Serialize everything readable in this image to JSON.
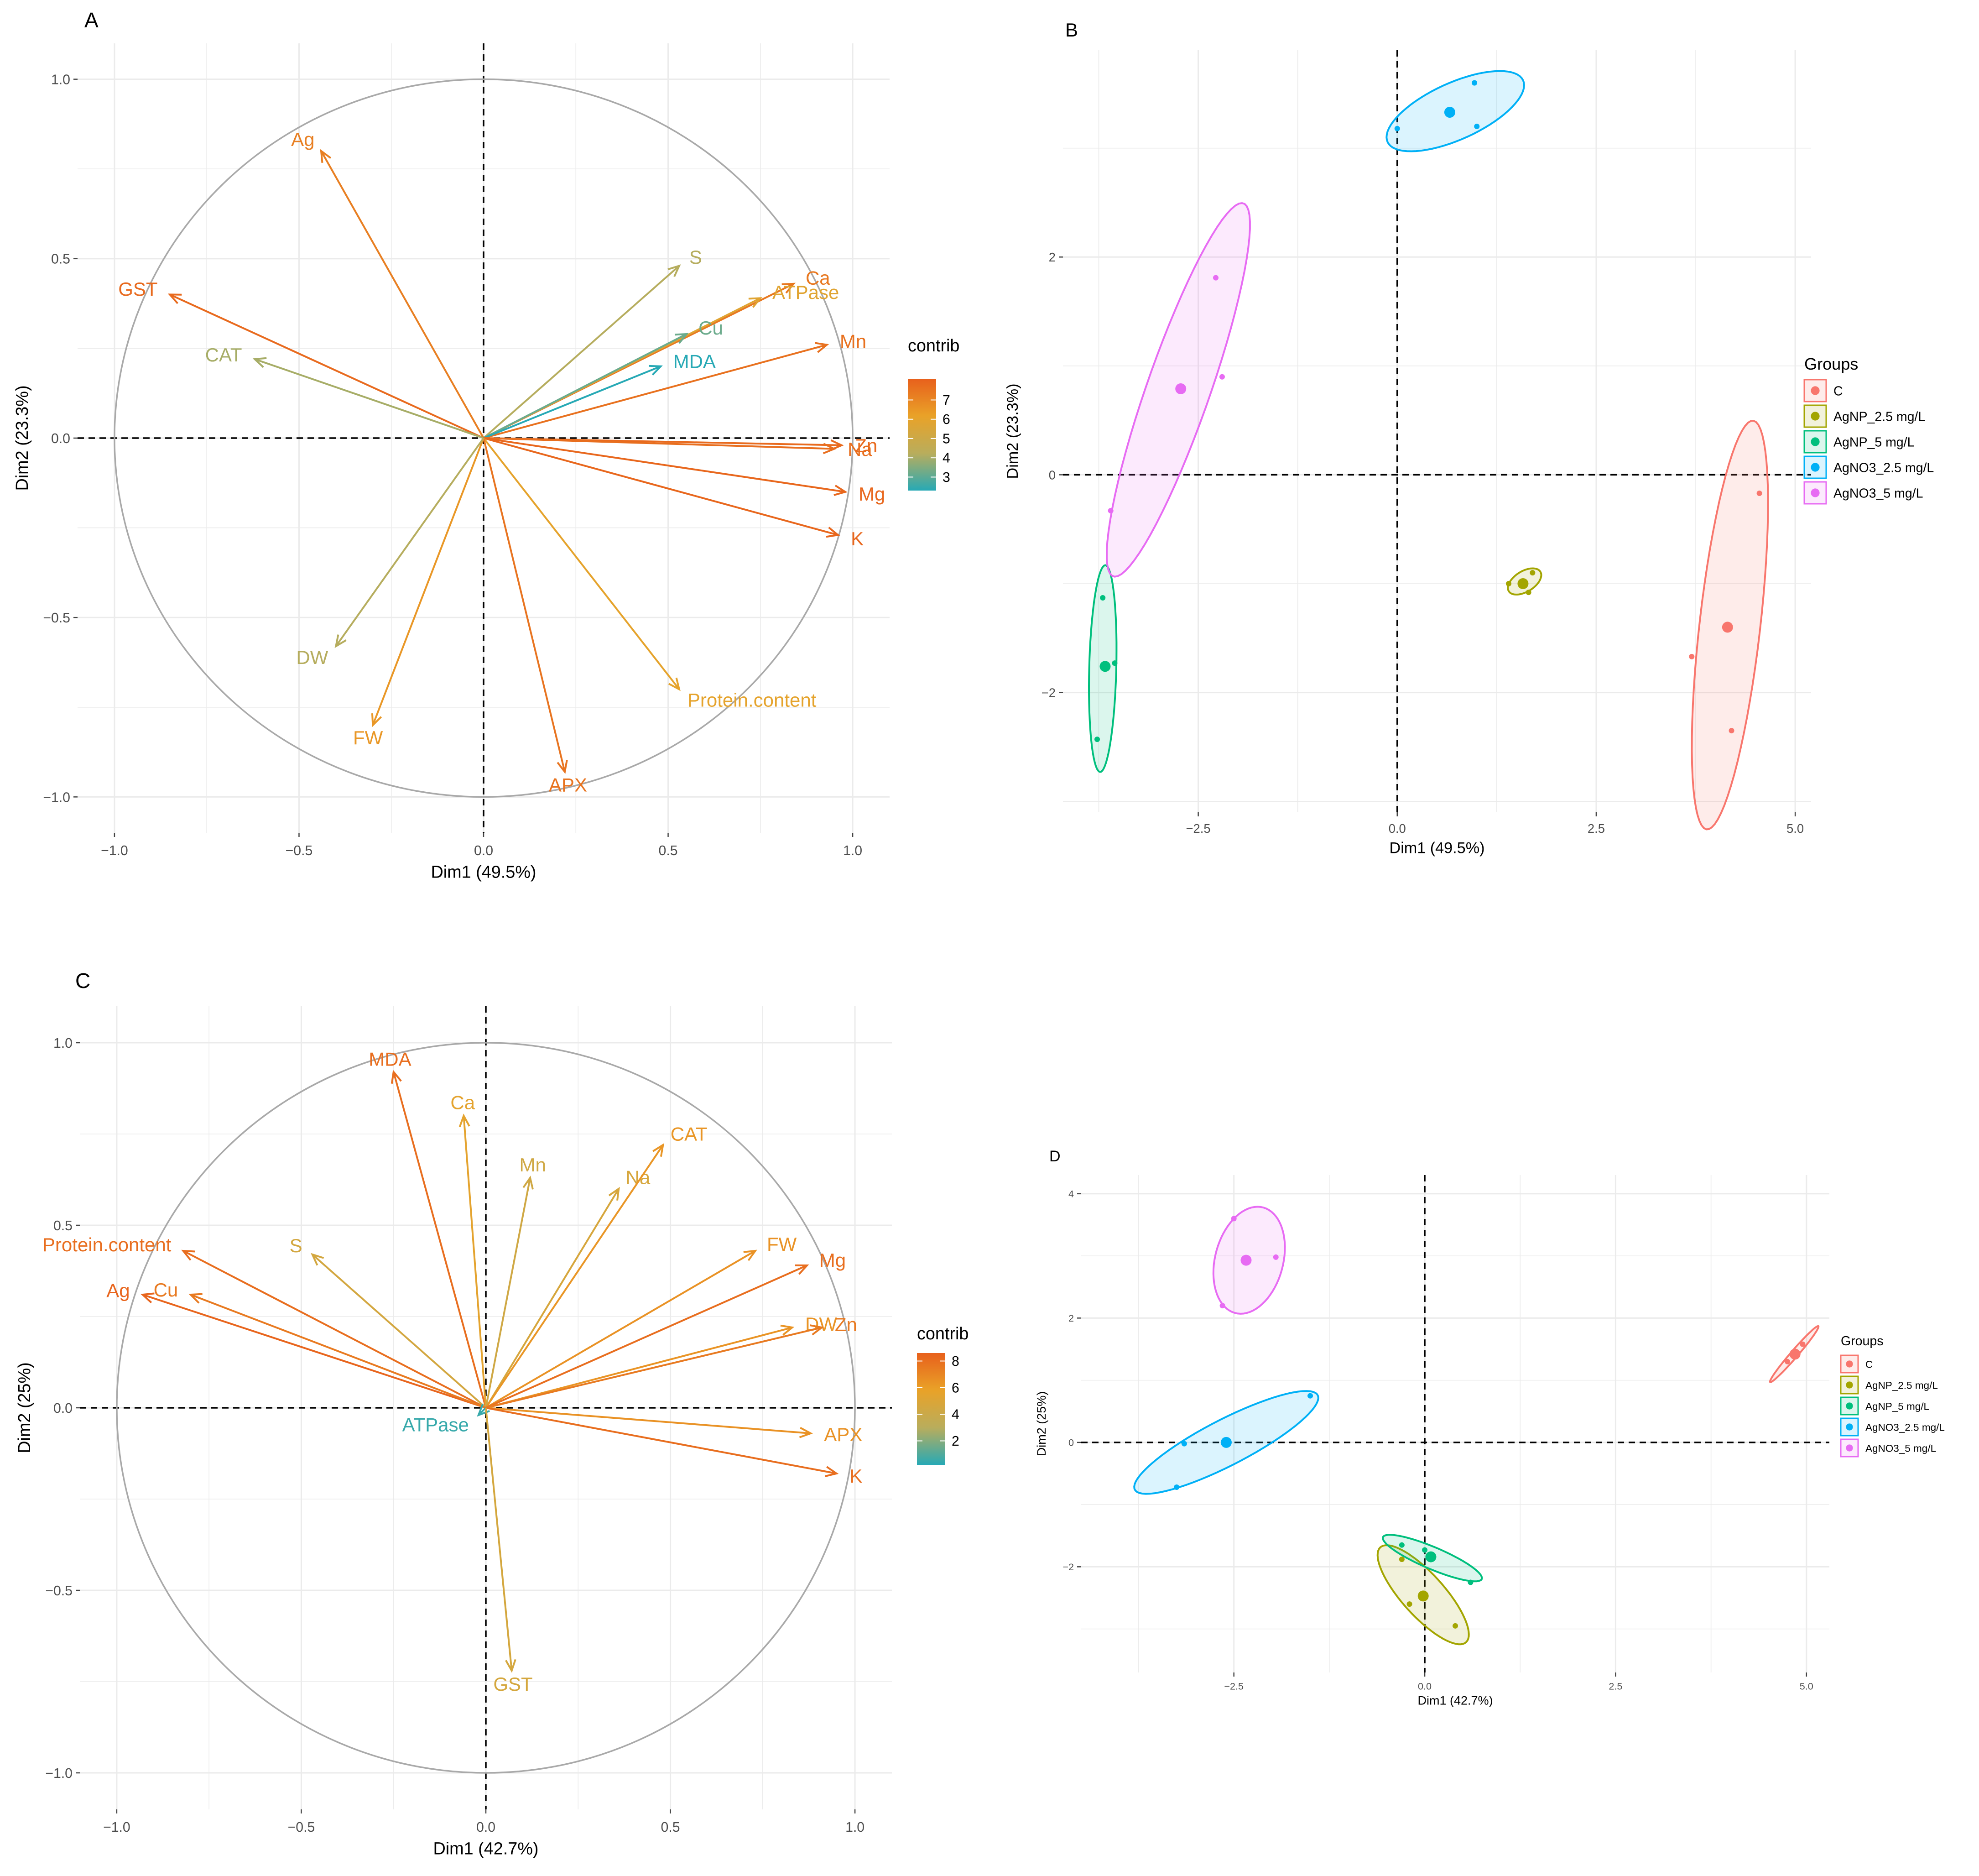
{
  "panels": [
    {
      "panel_label": "A",
      "chart_data": {
        "type": "biplot-variables",
        "xlabel": "Dim1 (49.5%)",
        "ylabel": "Dim2 (23.3%)",
        "xlim": [
          -1.1,
          1.1
        ],
        "ylim": [
          -1.1,
          1.1
        ],
        "x_ticks": [
          -1.0,
          -0.5,
          0.0,
          0.5,
          1.0
        ],
        "x_tick_labels": [
          "−1.0",
          "−0.5",
          "0.0",
          "0.5",
          "1.0"
        ],
        "y_ticks": [
          -1.0,
          -0.5,
          0.0,
          0.5,
          1.0
        ],
        "y_tick_labels": [
          "−1.0",
          "−0.5",
          "0.0",
          "0.5",
          "1.0"
        ],
        "grid": true,
        "unit_circle": true,
        "legend": {
          "title": "contrib",
          "type": "gradient",
          "range": [
            2.3,
            8.1
          ],
          "ticks": [
            3,
            4,
            5,
            6,
            7
          ],
          "colors": [
            "#27a9b5",
            "#b9ad5c",
            "#e9a228",
            "#e8601c"
          ]
        },
        "variables": [
          {
            "name": "Ag",
            "x": -0.44,
            "y": 0.8,
            "contrib": 7.2
          },
          {
            "name": "GST",
            "x": -0.85,
            "y": 0.4,
            "contrib": 7.8
          },
          {
            "name": "CAT",
            "x": -0.62,
            "y": 0.22,
            "contrib": 4.0
          },
          {
            "name": "S",
            "x": 0.53,
            "y": 0.48,
            "contrib": 4.2
          },
          {
            "name": "Ca",
            "x": 0.84,
            "y": 0.43,
            "contrib": 7.4
          },
          {
            "name": "ATPase",
            "x": 0.75,
            "y": 0.39,
            "contrib": 5.8
          },
          {
            "name": "Mn",
            "x": 0.93,
            "y": 0.26,
            "contrib": 7.6
          },
          {
            "name": "Cu",
            "x": 0.55,
            "y": 0.29,
            "contrib": 3.2
          },
          {
            "name": "MDA",
            "x": 0.48,
            "y": 0.2,
            "contrib": 2.3
          },
          {
            "name": "Zn",
            "x": 0.97,
            "y": -0.02,
            "contrib": 7.8
          },
          {
            "name": "Na",
            "x": 0.95,
            "y": -0.03,
            "contrib": 7.7
          },
          {
            "name": "Mg",
            "x": 0.98,
            "y": -0.15,
            "contrib": 7.9
          },
          {
            "name": "K",
            "x": 0.96,
            "y": -0.27,
            "contrib": 7.9
          },
          {
            "name": "Protein.content",
            "x": 0.53,
            "y": -0.7,
            "contrib": 6.0
          },
          {
            "name": "APX",
            "x": 0.22,
            "y": -0.93,
            "contrib": 7.5
          },
          {
            "name": "FW",
            "x": -0.3,
            "y": -0.8,
            "contrib": 6.5
          },
          {
            "name": "DW",
            "x": -0.4,
            "y": -0.58,
            "contrib": 4.2
          }
        ]
      }
    },
    {
      "panel_label": "B",
      "chart_data": {
        "type": "scatter",
        "xlabel": "Dim1 (49.5%)",
        "ylabel": "Dim2 (23.3%)",
        "xlim": [
          -4.2,
          5.2
        ],
        "ylim": [
          -3.1,
          3.9
        ],
        "x_ticks": [
          -2.5,
          0.0,
          2.5,
          5.0
        ],
        "x_tick_labels": [
          "−2.5",
          "0.0",
          "2.5",
          "5.0"
        ],
        "y_ticks": [
          -2,
          0,
          2
        ],
        "y_tick_labels": [
          "−2",
          "0",
          "2"
        ],
        "grid": true,
        "legend": {
          "title": "Groups",
          "placement": "right"
        },
        "series": [
          {
            "name": "C",
            "color": "#f8766d",
            "points": [
              [
                4.55,
                -0.17
              ],
              [
                3.7,
                -1.67
              ],
              [
                4.2,
                -2.35
              ]
            ],
            "centroid": [
              4.15,
              -1.4
            ],
            "ellipse": {
              "center": [
                4.18,
                -1.38
              ],
              "semi_major": 1.9,
              "semi_minor": 0.38,
              "angle_deg": 81
            }
          },
          {
            "name": "AgNP_2.5 mg/L",
            "color": "#a3a500",
            "points": [
              [
                1.4,
                -1.0
              ],
              [
                1.7,
                -0.9
              ],
              [
                1.65,
                -1.08
              ]
            ],
            "centroid": [
              1.58,
              -1.0
            ],
            "ellipse": {
              "center": [
                1.6,
                -0.98
              ],
              "semi_major": 0.22,
              "semi_minor": 0.1,
              "angle_deg": 20
            }
          },
          {
            "name": "AgNP_5 mg/L",
            "color": "#00bf7d",
            "points": [
              [
                -3.7,
                -1.13
              ],
              [
                -3.55,
                -1.73
              ],
              [
                -3.77,
                -2.43
              ]
            ],
            "centroid": [
              -3.67,
              -1.76
            ],
            "ellipse": {
              "center": [
                -3.7,
                -1.78
              ],
              "semi_major": 0.95,
              "semi_minor": 0.17,
              "angle_deg": 88
            }
          },
          {
            "name": "AgNO3_2.5 mg/L",
            "color": "#00b0f6",
            "points": [
              [
                0.0,
                3.18
              ],
              [
                0.97,
                3.6
              ],
              [
                1.0,
                3.2
              ]
            ],
            "centroid": [
              0.66,
              3.33
            ],
            "ellipse": {
              "center": [
                0.73,
                3.34
              ],
              "semi_major": 0.9,
              "semi_minor": 0.27,
              "angle_deg": 17
            }
          },
          {
            "name": "AgNO3_5 mg/L",
            "color": "#e76bf3",
            "points": [
              [
                -2.28,
                1.81
              ],
              [
                -2.2,
                0.9
              ],
              [
                -3.6,
                -0.33
              ]
            ],
            "centroid": [
              -2.72,
              0.79
            ],
            "ellipse": {
              "center": [
                -2.75,
                0.78
              ],
              "semi_major": 1.9,
              "semi_minor": 0.38,
              "angle_deg": 64
            }
          }
        ]
      }
    },
    {
      "panel_label": "C",
      "chart_data": {
        "type": "biplot-variables",
        "xlabel": "Dim1 (42.7%)",
        "ylabel": "Dim2 (25%)",
        "xlim": [
          -1.1,
          1.1
        ],
        "ylim": [
          -1.1,
          1.1
        ],
        "x_ticks": [
          -1.0,
          -0.5,
          0.0,
          0.5,
          1.0
        ],
        "x_tick_labels": [
          "−1.0",
          "−0.5",
          "0.0",
          "0.5",
          "1.0"
        ],
        "y_ticks": [
          -1.0,
          -0.5,
          0.0,
          0.5,
          1.0
        ],
        "y_tick_labels": [
          "−1.0",
          "−0.5",
          "0.0",
          "0.5",
          "1.0"
        ],
        "grid": true,
        "unit_circle": true,
        "legend": {
          "title": "contrib",
          "type": "gradient",
          "range": [
            0.2,
            8.6
          ],
          "ticks": [
            2,
            4,
            6,
            8
          ],
          "colors": [
            "#27a9b5",
            "#b9ad5c",
            "#e9a228",
            "#e8601c"
          ]
        },
        "variables": [
          {
            "name": "MDA",
            "x": -0.25,
            "y": 0.92,
            "contrib": 8.0
          },
          {
            "name": "Ca",
            "x": -0.06,
            "y": 0.8,
            "contrib": 5.5
          },
          {
            "name": "Mn",
            "x": 0.12,
            "y": 0.63,
            "contrib": 4.3
          },
          {
            "name": "Na",
            "x": 0.36,
            "y": 0.6,
            "contrib": 4.7
          },
          {
            "name": "CAT",
            "x": 0.48,
            "y": 0.72,
            "contrib": 6.3
          },
          {
            "name": "Protein.content",
            "x": -0.82,
            "y": 0.43,
            "contrib": 8.0
          },
          {
            "name": "S",
            "x": -0.47,
            "y": 0.42,
            "contrib": 4.5
          },
          {
            "name": "Ag",
            "x": -0.93,
            "y": 0.31,
            "contrib": 8.4
          },
          {
            "name": "Cu",
            "x": -0.8,
            "y": 0.31,
            "contrib": 7.5
          },
          {
            "name": "FW",
            "x": 0.73,
            "y": 0.43,
            "contrib": 6.5
          },
          {
            "name": "Mg",
            "x": 0.87,
            "y": 0.39,
            "contrib": 8.0
          },
          {
            "name": "DW",
            "x": 0.83,
            "y": 0.22,
            "contrib": 6.4
          },
          {
            "name": "Zn",
            "x": 0.91,
            "y": 0.22,
            "contrib": 7.5
          },
          {
            "name": "APX",
            "x": 0.88,
            "y": -0.07,
            "contrib": 6.5
          },
          {
            "name": "K",
            "x": 0.95,
            "y": -0.18,
            "contrib": 8.0
          },
          {
            "name": "ATPase",
            "x": -0.02,
            "y": -0.02,
            "contrib": 0.5
          },
          {
            "name": "GST",
            "x": 0.07,
            "y": -0.72,
            "contrib": 4.6
          }
        ]
      }
    },
    {
      "panel_label": "D",
      "chart_data": {
        "type": "scatter",
        "xlabel": "Dim1 (42.7%)",
        "ylabel": "Dim2 (25%)",
        "xlim": [
          -4.5,
          5.3
        ],
        "ylim": [
          -3.7,
          4.3
        ],
        "x_ticks": [
          -2.5,
          0.0,
          2.5,
          5.0
        ],
        "x_tick_labels": [
          "−2.5",
          "0.0",
          "2.5",
          "5.0"
        ],
        "y_ticks": [
          -2,
          0,
          2,
          4
        ],
        "y_tick_labels": [
          "−2",
          "0",
          "2",
          "4"
        ],
        "grid": true,
        "legend": {
          "title": "Groups",
          "placement": "right"
        },
        "series": [
          {
            "name": "C",
            "color": "#f8766d",
            "points": [
              [
                4.75,
                1.3
              ],
              [
                4.95,
                1.58
              ],
              [
                4.85,
                1.45
              ]
            ],
            "centroid": [
              4.85,
              1.42
            ],
            "ellipse": {
              "center": [
                4.84,
                1.42
              ],
              "semi_major": 0.55,
              "semi_minor": 0.05,
              "angle_deg": 55
            }
          },
          {
            "name": "AgNP_2.5 mg/L",
            "color": "#a3a500",
            "points": [
              [
                -0.3,
                -1.88
              ],
              [
                -0.2,
                -2.6
              ],
              [
                0.4,
                -2.95
              ]
            ],
            "centroid": [
              -0.02,
              -2.47
            ],
            "ellipse": {
              "center": [
                -0.02,
                -2.45
              ],
              "semi_major": 0.95,
              "semi_minor": 0.3,
              "angle_deg": -55
            }
          },
          {
            "name": "AgNP_5 mg/L",
            "color": "#00bf7d",
            "points": [
              [
                -0.3,
                -1.65
              ],
              [
                0.0,
                -1.73
              ],
              [
                0.6,
                -2.25
              ]
            ],
            "centroid": [
              0.08,
              -1.84
            ],
            "ellipse": {
              "center": [
                0.1,
                -1.86
              ],
              "semi_major": 0.73,
              "semi_minor": 0.17,
              "angle_deg": -28
            }
          },
          {
            "name": "AgNO3_2.5 mg/L",
            "color": "#00b0f6",
            "points": [
              [
                -3.15,
                -0.02
              ],
              [
                -1.5,
                0.75
              ],
              [
                -3.25,
                -0.72
              ]
            ],
            "centroid": [
              -2.6,
              0.0
            ],
            "ellipse": {
              "center": [
                -2.6,
                0.0
              ],
              "semi_major": 1.42,
              "semi_minor": 0.35,
              "angle_deg": 33
            }
          },
          {
            "name": "AgNO3_5 mg/L",
            "color": "#e76bf3",
            "points": [
              [
                -2.5,
                3.6
              ],
              [
                -1.95,
                2.98
              ],
              [
                -2.65,
                2.2
              ]
            ],
            "centroid": [
              -2.34,
              2.93
            ],
            "ellipse": {
              "center": [
                -2.3,
                2.93
              ],
              "semi_major": 0.87,
              "semi_minor": 0.45,
              "angle_deg": 80
            }
          }
        ]
      }
    }
  ]
}
